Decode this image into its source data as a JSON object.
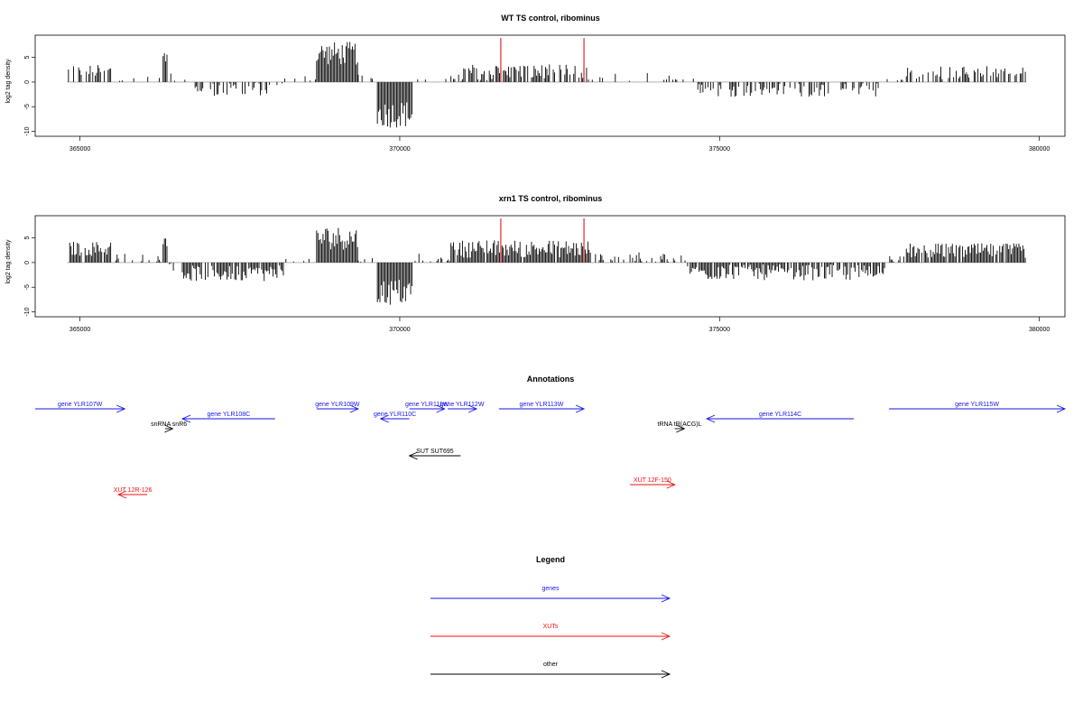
{
  "panels": [
    {
      "title": "WT TS control, ribominus",
      "ylabel": "log2 tag density",
      "ylim": [
        -11,
        9.5
      ],
      "yticks": [
        -10,
        -5,
        0,
        5
      ],
      "xlim": [
        364300,
        380400
      ],
      "xticks": [
        365000,
        370000,
        375000,
        380000
      ],
      "markers": [
        371580,
        372880
      ],
      "chart_data": {
        "type": "bar",
        "x_range": [
          364800,
          379800
        ],
        "bin_width": 20,
        "segments": [
          {
            "from": 364800,
            "to": 365500,
            "mean": 2.2,
            "amp": 1.3,
            "density": 0.55
          },
          {
            "from": 365500,
            "to": 366300,
            "mean": 0.6,
            "amp": 1.6,
            "density": 0.2
          },
          {
            "from": 366300,
            "to": 366380,
            "mean": 4.8,
            "amp": 1.2,
            "density": 1.0
          },
          {
            "from": 366380,
            "to": 366700,
            "mean": 0.8,
            "amp": 1.5,
            "density": 0.3
          },
          {
            "from": 366700,
            "to": 368200,
            "mean": -1.4,
            "amp": 1.4,
            "density": 0.45
          },
          {
            "from": 368200,
            "to": 368700,
            "mean": 0.3,
            "amp": 1.3,
            "density": 0.2
          },
          {
            "from": 368700,
            "to": 369350,
            "mean": 5.8,
            "amp": 2.4,
            "density": 1.0
          },
          {
            "from": 369350,
            "to": 369650,
            "mean": 0.3,
            "amp": 1.2,
            "density": 0.25
          },
          {
            "from": 369650,
            "to": 370200,
            "mean": -6.5,
            "amp": 2.8,
            "density": 1.0
          },
          {
            "from": 370200,
            "to": 371000,
            "mean": 0.4,
            "amp": 1.2,
            "density": 0.25
          },
          {
            "from": 371000,
            "to": 372950,
            "mean": 2.0,
            "amp": 1.6,
            "density": 0.7
          },
          {
            "from": 372950,
            "to": 374600,
            "mean": 0.4,
            "amp": 1.5,
            "density": 0.2
          },
          {
            "from": 374600,
            "to": 377600,
            "mean": -1.6,
            "amp": 1.4,
            "density": 0.45
          },
          {
            "from": 377600,
            "to": 377900,
            "mean": 0.3,
            "amp": 1.0,
            "density": 0.2
          },
          {
            "from": 377900,
            "to": 379800,
            "mean": 1.9,
            "amp": 1.4,
            "density": 0.55
          }
        ]
      }
    },
    {
      "title": "xrn1 TS control, ribominus",
      "ylabel": "log2 tag density",
      "ylim": [
        -11,
        9.5
      ],
      "yticks": [
        -10,
        -5,
        0,
        5
      ],
      "xlim": [
        364300,
        380400
      ],
      "xticks": [
        365000,
        370000,
        375000,
        380000
      ],
      "markers": [
        371580,
        372880
      ],
      "chart_data": {
        "type": "bar",
        "x_range": [
          364800,
          379800
        ],
        "bin_width": 20,
        "segments": [
          {
            "from": 364800,
            "to": 365500,
            "mean": 2.8,
            "amp": 1.5,
            "density": 0.85
          },
          {
            "from": 365500,
            "to": 366300,
            "mean": 0.4,
            "amp": 1.6,
            "density": 0.25
          },
          {
            "from": 366300,
            "to": 366380,
            "mean": 4.3,
            "amp": 1.0,
            "density": 1.0
          },
          {
            "from": 366380,
            "to": 366600,
            "mean": -0.5,
            "amp": 1.2,
            "density": 0.35
          },
          {
            "from": 366600,
            "to": 368200,
            "mean": -2.2,
            "amp": 1.6,
            "density": 0.85
          },
          {
            "from": 368200,
            "to": 368700,
            "mean": 0.3,
            "amp": 1.2,
            "density": 0.25
          },
          {
            "from": 368700,
            "to": 369350,
            "mean": 5.0,
            "amp": 2.4,
            "density": 1.0
          },
          {
            "from": 369350,
            "to": 369650,
            "mean": 0.3,
            "amp": 1.2,
            "density": 0.3
          },
          {
            "from": 369650,
            "to": 370200,
            "mean": -6.0,
            "amp": 2.8,
            "density": 1.0
          },
          {
            "from": 370200,
            "to": 370800,
            "mean": 0.5,
            "amp": 1.3,
            "density": 0.35
          },
          {
            "from": 370800,
            "to": 373000,
            "mean": 2.8,
            "amp": 1.8,
            "density": 0.95
          },
          {
            "from": 373000,
            "to": 374500,
            "mean": 0.5,
            "amp": 1.6,
            "density": 0.35
          },
          {
            "from": 374500,
            "to": 377600,
            "mean": -2.0,
            "amp": 1.6,
            "density": 0.8
          },
          {
            "from": 377600,
            "to": 377900,
            "mean": 0.3,
            "amp": 1.0,
            "density": 0.25
          },
          {
            "from": 377900,
            "to": 379800,
            "mean": 2.4,
            "amp": 1.5,
            "density": 0.9
          }
        ]
      }
    }
  ],
  "annotations": {
    "title": "Annotations",
    "features": [
      {
        "label": "gene YLR107W",
        "start": 364300,
        "end": 365700,
        "strand": "+",
        "row": 0,
        "type": "gene"
      },
      {
        "label": "gene YLR108C",
        "start": 366600,
        "end": 368050,
        "strand": "-",
        "row": 1,
        "type": "gene"
      },
      {
        "label": "snRNA snR6",
        "start": 366330,
        "end": 366450,
        "strand": "+",
        "row": 2,
        "type": "other"
      },
      {
        "label": "gene YLR109W",
        "start": 368700,
        "end": 369350,
        "strand": "+",
        "row": 0,
        "type": "gene"
      },
      {
        "label": "gene YLR110C",
        "start": 369700,
        "end": 370150,
        "strand": "-",
        "row": 1,
        "type": "gene"
      },
      {
        "label": "gene YLR111W",
        "start": 370150,
        "end": 370700,
        "strand": "+",
        "row": 0,
        "type": "gene"
      },
      {
        "label": "gene YLR112W",
        "start": 370750,
        "end": 371200,
        "strand": "+",
        "row": 0,
        "type": "gene"
      },
      {
        "label": "SUT SUT695",
        "start": 370150,
        "end": 370950,
        "strand": "-",
        "row": 3,
        "type": "other"
      },
      {
        "label": "gene YLR113W",
        "start": 371550,
        "end": 372880,
        "strand": "+",
        "row": 0,
        "type": "gene"
      },
      {
        "label": "tRNA tR(ACG)L",
        "start": 374300,
        "end": 374450,
        "strand": "+",
        "row": 2,
        "type": "other"
      },
      {
        "label": "gene YLR114C",
        "start": 374800,
        "end": 377100,
        "strand": "-",
        "row": 1,
        "type": "gene"
      },
      {
        "label": "gene YLR115W",
        "start": 377650,
        "end": 380400,
        "strand": "+",
        "row": 0,
        "type": "gene"
      },
      {
        "label": "XUT 12R-126",
        "start": 365600,
        "end": 366050,
        "strand": "-",
        "row": 5,
        "type": "XUT"
      },
      {
        "label": "XUT 12F-150",
        "start": 373600,
        "end": 374300,
        "strand": "+",
        "row": 4,
        "type": "XUT"
      }
    ]
  },
  "legend": {
    "title": "Legend",
    "items": [
      {
        "label": "genes",
        "type": "gene"
      },
      {
        "label": "XUTs",
        "type": "XUT"
      },
      {
        "label": "other",
        "type": "other"
      }
    ]
  },
  "colors": {
    "gene": "#1515ee",
    "XUT": "#ee1111",
    "other": "#000000",
    "bars": "#000000",
    "marker": "#dd0000",
    "baseline": "#888888",
    "frame": "#000000"
  }
}
